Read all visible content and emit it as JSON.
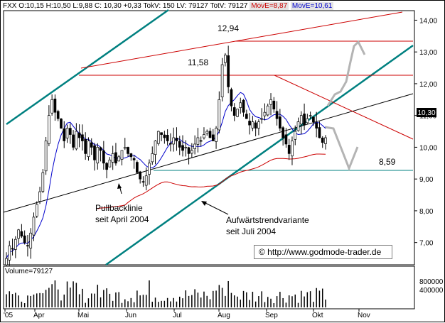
{
  "header": {
    "symbol": "FXX",
    "ohlc": "O:10,15 H:10,50 L:9,88 C: 10,30 +0,33",
    "tokv": "TokV: 150",
    "lv": "LV: 79127",
    "totv": "TotV: 79127",
    "move1": "MovE=8,87",
    "move2": "MovE=10,61"
  },
  "colors": {
    "price": "#000000",
    "ma_short": "#0000cc",
    "ma_long": "#cc0000",
    "teal": "#008080",
    "red_line": "#cc0000",
    "forecast": "#b4b4b4"
  },
  "annotations": {
    "high1": "12,94",
    "high2": "11,58",
    "low": "8,59",
    "pullback": [
      "Pullbacklinie",
      "seit April 2004"
    ],
    "trend": [
      "Aufwärtstrendvariante",
      "seit Juli 2004"
    ],
    "copyright": "© http://www.godmode-trader.de",
    "current_price": "10,30"
  },
  "volume_label": "Volume=79127",
  "chart_data": {
    "type": "candlestick",
    "title": "",
    "x_labels": [
      "'05",
      "Apr",
      "Mai",
      "Jun",
      "Jul",
      "Aug",
      "Sep",
      "Okt",
      "Nov"
    ],
    "y_ticks": [
      "7,00",
      "8,00",
      "9,00",
      "10,00",
      "11,00",
      "12,00",
      "13,00",
      "14,00"
    ],
    "ylim": [
      6.3,
      14.3
    ],
    "volume_ticks": [
      "800000",
      "400000"
    ],
    "current_price": 10.3,
    "levels": [
      {
        "name": "high",
        "value": 12.94
      },
      {
        "name": "resistance",
        "value": 11.58
      },
      {
        "name": "support",
        "value": 8.59
      }
    ],
    "ohlc_last": {
      "open": 10.15,
      "high": 10.5,
      "low": 9.88,
      "close": 10.3
    },
    "closes": [
      6.5,
      6.9,
      6.8,
      7.1,
      7.4,
      7.2,
      7.0,
      6.9,
      7.3,
      7.8,
      8.2,
      8.6,
      9.2,
      10.2,
      11.0,
      11.5,
      11.1,
      10.9,
      10.6,
      10.2,
      10.6,
      10.4,
      10.0,
      10.5,
      10.3,
      10.2,
      9.8,
      10.2,
      10.0,
      9.6,
      10.0,
      9.9,
      9.5,
      9.3,
      9.6,
      9.8,
      9.5,
      9.7,
      9.9,
      10.0,
      9.8,
      9.7,
      9.6,
      9.2,
      9.0,
      8.9,
      9.1,
      9.5,
      9.8,
      10.2,
      10.5,
      10.4,
      10.3,
      10.2,
      10.1,
      10.3,
      10.2,
      10.0,
      9.9,
      10.0,
      9.8,
      9.9,
      10.1,
      10.3,
      10.2,
      10.4,
      10.5,
      10.3,
      10.2,
      10.6,
      11.5,
      12.6,
      12.9,
      11.9,
      11.3,
      11.0,
      11.2,
      11.4,
      11.1,
      10.9,
      10.7,
      10.8,
      10.6,
      10.8,
      10.9,
      11.1,
      11.3,
      11.5,
      11.2,
      10.9,
      10.6,
      10.3,
      10.1,
      9.8,
      10.2,
      10.5,
      10.8,
      11.0,
      10.7,
      10.9,
      11.0,
      10.8,
      10.6,
      10.3,
      10.15,
      10.3
    ]
  }
}
